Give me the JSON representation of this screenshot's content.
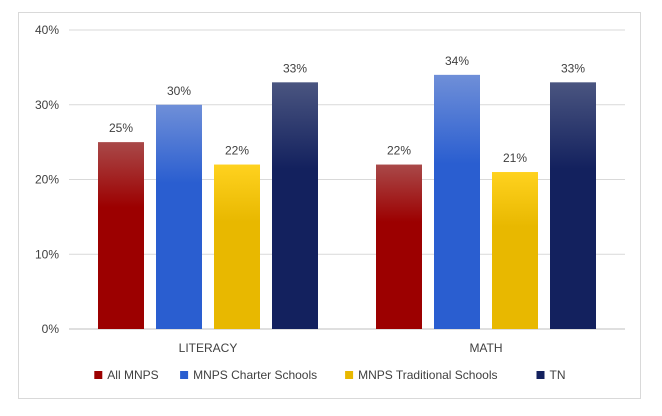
{
  "chart_data": {
    "type": "bar",
    "categories": [
      "LITERACY",
      "MATH"
    ],
    "series": [
      {
        "name": "All MNPS",
        "values": [
          25,
          22
        ],
        "color_top": "#a94949",
        "color_bottom": "#9c0000"
      },
      {
        "name": "MNPS Charter Schools",
        "values": [
          30,
          34
        ],
        "color_top": "#6f8fd8",
        "color_bottom": "#2a5ed0"
      },
      {
        "name": "MNPS Traditional Schools",
        "values": [
          22,
          21
        ],
        "color_top": "#ffd21f",
        "color_bottom": "#e8b800"
      },
      {
        "name": "TN",
        "values": [
          33,
          33
        ],
        "color_top": "#4a5580",
        "color_bottom": "#13215e"
      }
    ],
    "data_labels": [
      [
        "25%",
        "22%"
      ],
      [
        "30%",
        "34%"
      ],
      [
        "22%",
        "21%"
      ],
      [
        "33%",
        "33%"
      ]
    ],
    "y_ticks": [
      "0%",
      "10%",
      "20%",
      "30%",
      "40%"
    ],
    "ylim": [
      0,
      40
    ],
    "grid": true,
    "legend_position": "bottom"
  }
}
